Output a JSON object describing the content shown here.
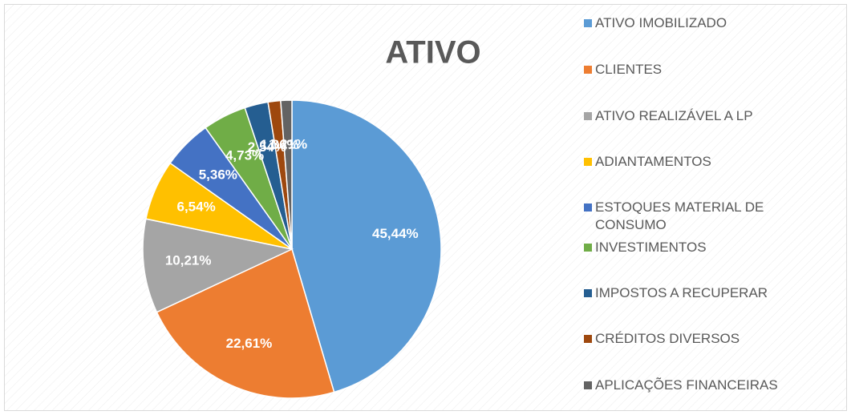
{
  "chart_data": {
    "type": "pie",
    "title": "ATIVO",
    "categories": [
      "ATIVO IMOBILIZADO",
      "CLIENTES",
      "ATIVO REALIZÁVEL A LP",
      "ADIANTAMENTOS",
      "ESTOQUES MATERIAL DE CONSUMO",
      "INVESTIMENTOS",
      "IMPOSTOS A RECUPERAR",
      "CRÉDITOS DIVERSOS",
      "APLICAÇÕES FINANCEIRAS"
    ],
    "values": [
      45.44,
      22.61,
      10.21,
      6.54,
      5.36,
      4.73,
      2.54,
      1.36,
      1.21
    ],
    "value_labels": [
      "45,44%",
      "22,61%",
      "10,21%",
      "6,54%",
      "5,36%",
      "4,73%",
      "2,54%",
      "1,36%",
      "1,21%"
    ],
    "colors": [
      "#5b9bd5",
      "#ed7d31",
      "#a5a5a5",
      "#ffc000",
      "#4472c4",
      "#70ad47",
      "#255e91",
      "#9e480e",
      "#636363"
    ],
    "legend": "right"
  }
}
